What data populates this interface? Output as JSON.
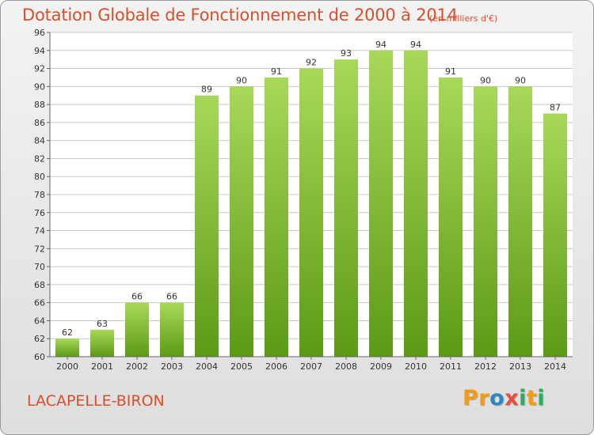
{
  "title": "Dotation Globale de Fonctionnement de 2000 à 2014",
  "unit_note": "(en milliers d'€)",
  "commune": "LACAPELLE-BIRON",
  "logo": {
    "letters": [
      "P",
      "r",
      "o",
      "x",
      "i",
      "t",
      "i"
    ],
    "colors": [
      "#f39c12",
      "#f39c12",
      "#2e86c1",
      "#e74c3c",
      "#27ae60",
      "#f39c12",
      "#27ae60"
    ]
  },
  "colors": {
    "title": "#d94f2b",
    "bar_light": "#a8d85a",
    "bar_dark": "#5c9a16",
    "grid": "#c8c8c8",
    "plot_bg": "#ffffff"
  },
  "chart_data": {
    "type": "bar",
    "categories": [
      "2000",
      "2001",
      "2002",
      "2003",
      "2004",
      "2005",
      "2006",
      "2007",
      "2008",
      "2009",
      "2010",
      "2011",
      "2012",
      "2013",
      "2014"
    ],
    "values": [
      62,
      63,
      66,
      66,
      89,
      90,
      91,
      92,
      93,
      94,
      94,
      91,
      90,
      90,
      87
    ],
    "title": "Dotation Globale de Fonctionnement de 2000 à 2014",
    "ylim": [
      60,
      96
    ],
    "yticks": [
      60,
      62,
      64,
      66,
      68,
      70,
      72,
      74,
      76,
      78,
      80,
      82,
      84,
      86,
      88,
      90,
      92,
      94,
      96
    ],
    "grid": true,
    "legend": "none"
  }
}
